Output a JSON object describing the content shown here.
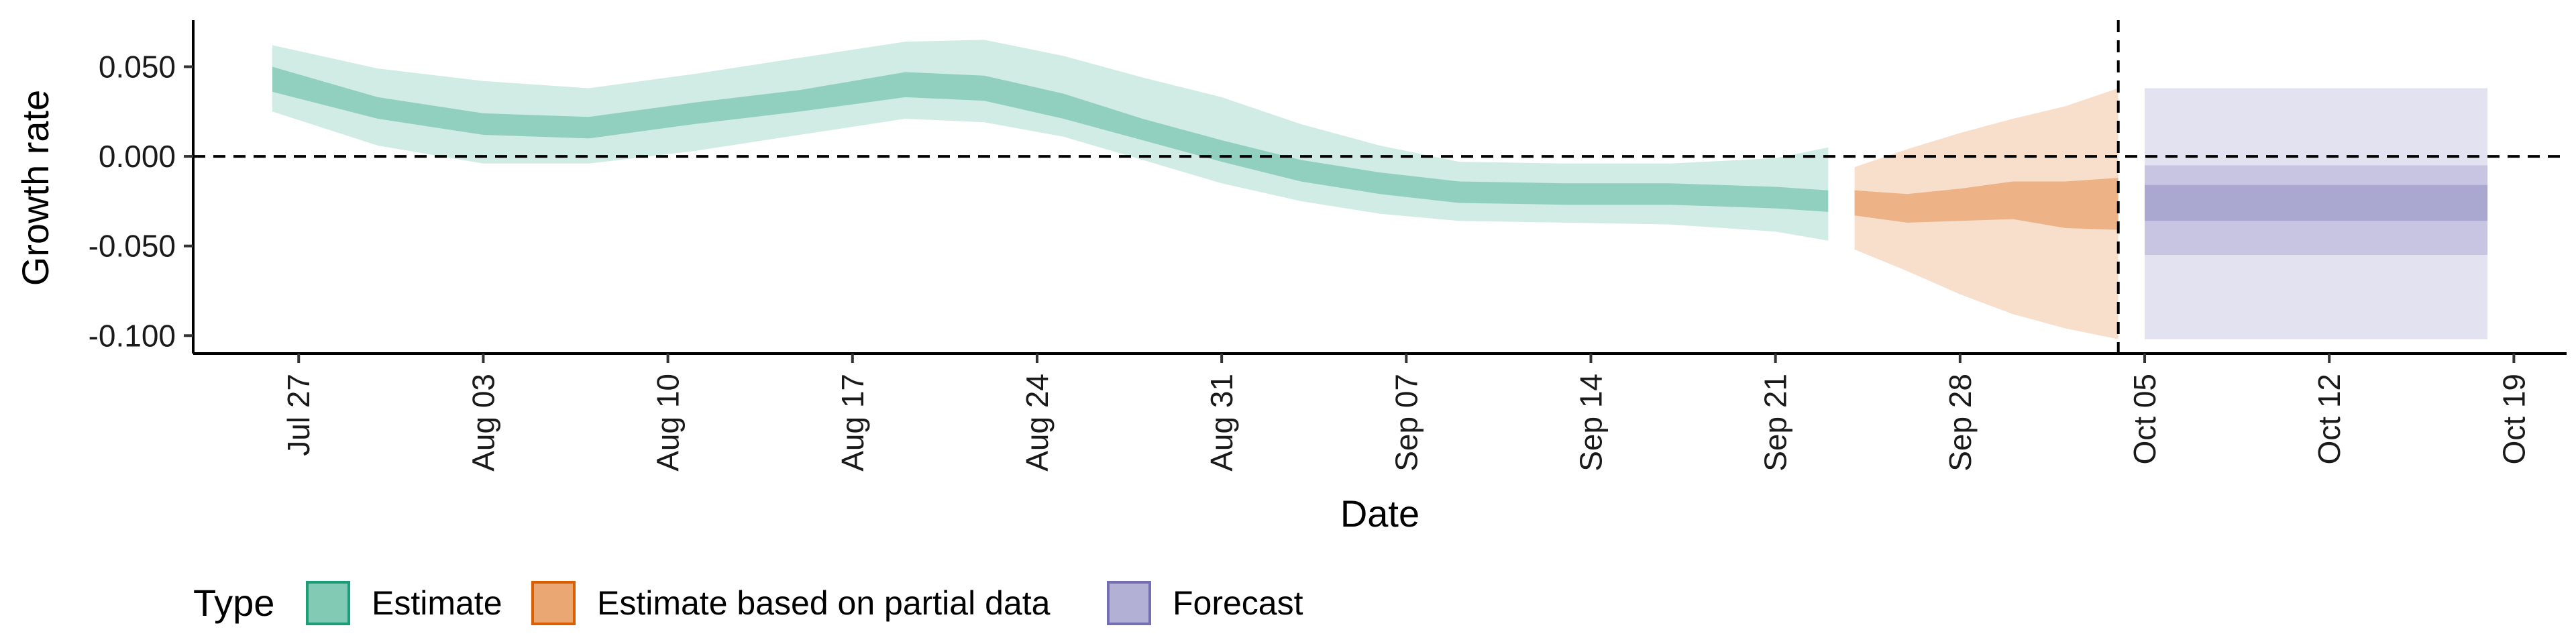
{
  "chart_data": {
    "type": "area",
    "xlabel": "Date",
    "ylabel": "Growth rate",
    "xlim": [
      "2020-07-23",
      "2020-10-21"
    ],
    "ylim": [
      -0.11,
      0.076
    ],
    "x_ticks": [
      "2020-07-27",
      "2020-08-03",
      "2020-08-10",
      "2020-08-17",
      "2020-08-24",
      "2020-08-31",
      "2020-09-07",
      "2020-09-14",
      "2020-09-21",
      "2020-09-28",
      "2020-10-05",
      "2020-10-12",
      "2020-10-19"
    ],
    "x_tick_labels": [
      "Jul 27",
      "Aug 03",
      "Aug 10",
      "Aug 17",
      "Aug 24",
      "Aug 31",
      "Sep 07",
      "Sep 14",
      "Sep 21",
      "Sep 28",
      "Oct 05",
      "Oct 12",
      "Oct 19"
    ],
    "y_ticks": [
      0.05,
      0.0,
      -0.05,
      -0.1
    ],
    "y_tick_labels": [
      "0.050",
      "0.000",
      "-0.050",
      "-0.100"
    ],
    "reference_lines": {
      "hline": 0.0,
      "vline_date": "2020-10-04"
    },
    "grid": false,
    "legend": {
      "title": "Type",
      "position": "bottom-left",
      "entries": [
        {
          "label": "Estimate",
          "fill": "#1b9e77",
          "border": "#1b9e77"
        },
        {
          "label": "Estimate based on partial data",
          "fill": "#d95f02",
          "border": "#d95f02"
        },
        {
          "label": "Forecast",
          "fill": "#7570b3",
          "border": "#7570b3"
        }
      ]
    },
    "series": [
      {
        "name": "Estimate",
        "color": "#1b9e77",
        "x": [
          "2020-07-26",
          "2020-07-30",
          "2020-08-03",
          "2020-08-07",
          "2020-08-11",
          "2020-08-15",
          "2020-08-19",
          "2020-08-22",
          "2020-08-25",
          "2020-08-28",
          "2020-08-31",
          "2020-09-03",
          "2020-09-06",
          "2020-09-09",
          "2020-09-13",
          "2020-09-17",
          "2020-09-21",
          "2020-09-23"
        ],
        "median": [
          0.043,
          0.027,
          0.018,
          0.016,
          0.024,
          0.031,
          0.04,
          0.038,
          0.028,
          0.015,
          0.003,
          -0.008,
          -0.015,
          -0.02,
          -0.021,
          -0.021,
          -0.023,
          -0.025
        ],
        "ci20": [
          [
            0.036,
            0.05
          ],
          [
            0.021,
            0.033
          ],
          [
            0.012,
            0.024
          ],
          [
            0.01,
            0.022
          ],
          [
            0.018,
            0.03
          ],
          [
            0.025,
            0.037
          ],
          [
            0.033,
            0.047
          ],
          [
            0.031,
            0.045
          ],
          [
            0.021,
            0.035
          ],
          [
            0.009,
            0.021
          ],
          [
            -0.003,
            0.009
          ],
          [
            -0.014,
            -0.002
          ],
          [
            -0.021,
            -0.009
          ],
          [
            -0.026,
            -0.014
          ],
          [
            -0.027,
            -0.015
          ],
          [
            -0.027,
            -0.015
          ],
          [
            -0.029,
            -0.017
          ],
          [
            -0.031,
            -0.019
          ]
        ],
        "ci90": [
          [
            0.025,
            0.062
          ],
          [
            0.006,
            0.049
          ],
          [
            -0.004,
            0.042
          ],
          [
            -0.004,
            0.038
          ],
          [
            0.003,
            0.046
          ],
          [
            0.012,
            0.055
          ],
          [
            0.021,
            0.064
          ],
          [
            0.019,
            0.065
          ],
          [
            0.011,
            0.056
          ],
          [
            -0.002,
            0.044
          ],
          [
            -0.015,
            0.033
          ],
          [
            -0.025,
            0.018
          ],
          [
            -0.032,
            0.006
          ],
          [
            -0.036,
            -0.003
          ],
          [
            -0.037,
            -0.004
          ],
          [
            -0.038,
            -0.004
          ],
          [
            -0.042,
            -0.001
          ],
          [
            -0.047,
            0.005
          ]
        ]
      },
      {
        "name": "Estimate based on partial data",
        "color": "#d95f02",
        "x": [
          "2020-09-24",
          "2020-09-26",
          "2020-09-28",
          "2020-09-30",
          "2020-10-02",
          "2020-10-04"
        ],
        "median": [
          -0.026,
          -0.029,
          -0.027,
          -0.024,
          -0.027,
          -0.027
        ],
        "ci20": [
          [
            -0.033,
            -0.019
          ],
          [
            -0.037,
            -0.021
          ],
          [
            -0.036,
            -0.018
          ],
          [
            -0.035,
            -0.014
          ],
          [
            -0.04,
            -0.014
          ],
          [
            -0.041,
            -0.012
          ]
        ],
        "ci90": [
          [
            -0.052,
            -0.006
          ],
          [
            -0.064,
            0.004
          ],
          [
            -0.077,
            0.013
          ],
          [
            -0.088,
            0.021
          ],
          [
            -0.096,
            0.028
          ],
          [
            -0.102,
            0.038
          ]
        ]
      },
      {
        "name": "Forecast",
        "color": "#7570b3",
        "x": [
          "2020-10-05",
          "2020-10-18"
        ],
        "median": [
          -0.026,
          -0.026
        ],
        "ci20": [
          [
            -0.036,
            -0.016
          ],
          [
            -0.036,
            -0.016
          ]
        ],
        "ci50": [
          [
            -0.055,
            -0.005
          ],
          [
            -0.055,
            -0.005
          ]
        ],
        "ci90": [
          [
            -0.102,
            0.038
          ],
          [
            -0.102,
            0.038
          ]
        ]
      }
    ]
  }
}
